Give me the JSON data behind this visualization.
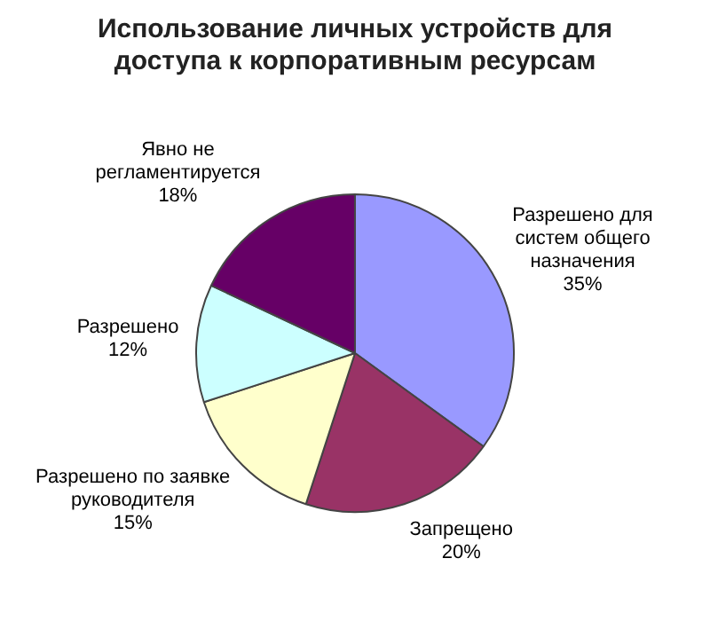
{
  "chart_data": {
    "type": "pie",
    "title": "Использование личных устройств для доступа к корпоративным ресурсам",
    "categories": [
      "Разрешено для систем общего назначения",
      "Запрещено",
      "Разрешено по заявке руководителя",
      "Разрешено",
      "Явно не регламентируется"
    ],
    "values": [
      35,
      20,
      15,
      12,
      18
    ],
    "value_labels": [
      "35%",
      "20%",
      "15%",
      "12%",
      "18%"
    ],
    "colors": [
      "#9999ff",
      "#993366",
      "#ffffcc",
      "#ccffff",
      "#660066"
    ],
    "legend": false
  }
}
